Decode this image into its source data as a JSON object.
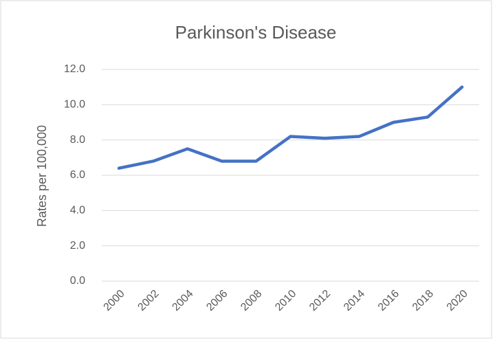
{
  "chart_data": {
    "type": "line",
    "title": "Parkinson's Disease",
    "y_label": "Rates per 100,000",
    "categories": [
      "2000",
      "2002",
      "2004",
      "2006",
      "2008",
      "2010",
      "2012",
      "2014",
      "2016",
      "2018",
      "2020"
    ],
    "series": [
      {
        "name": "Parkinson's Disease",
        "color": "#4472c4",
        "values": [
          6.4,
          6.8,
          7.5,
          6.8,
          6.8,
          8.2,
          8.1,
          8.2,
          9.0,
          9.3,
          11.0
        ]
      }
    ],
    "ylim": [
      0,
      12
    ],
    "yticks": [
      {
        "value": 0,
        "label": "0.0"
      },
      {
        "value": 2,
        "label": "2.0"
      },
      {
        "value": 4,
        "label": "4.0"
      },
      {
        "value": 6,
        "label": "6.0"
      },
      {
        "value": 8,
        "label": "8.0"
      },
      {
        "value": 10,
        "label": "10.0"
      },
      {
        "value": 12,
        "label": "12.0"
      }
    ],
    "grid": true
  }
}
